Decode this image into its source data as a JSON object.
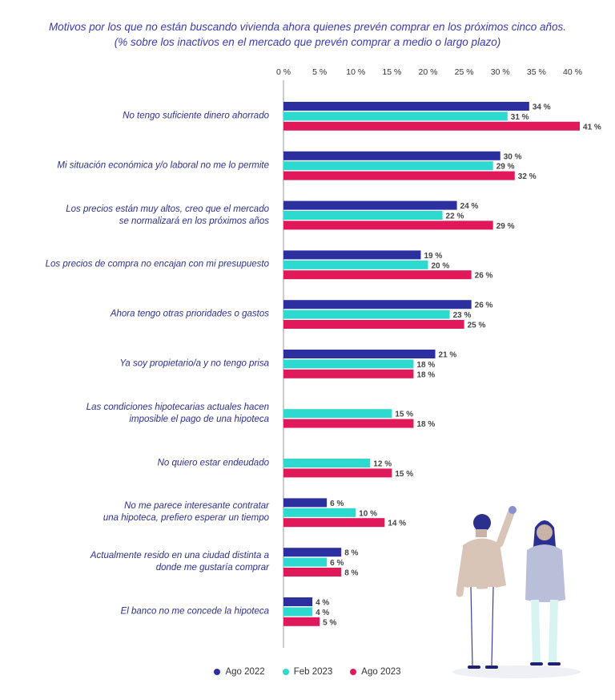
{
  "header": {
    "title_line1": "Motivos por los que no están buscando vivienda ahora quienes prevén comprar en los próximos cinco años.",
    "title_line2": "(% sobre los inactivos en el mercado que prevén comprar a medio o largo plazo)"
  },
  "chart_data": {
    "type": "bar",
    "orientation": "horizontal",
    "categories": [
      [
        "No tengo suficiente dinero ahorrado"
      ],
      [
        "Mi situación económica y/o laboral no me lo permite"
      ],
      [
        "Los precios están muy altos, creo que el mercado",
        "se normalizará en los próximos años"
      ],
      [
        "Los precios de compra no encajan con mi presupuesto"
      ],
      [
        "Ahora tengo otras prioridades o gastos"
      ],
      [
        "Ya soy propietario/a y no tengo prisa"
      ],
      [
        "Las condiciones hipotecarias actuales hacen",
        "imposible el pago de una hipoteca"
      ],
      [
        "No quiero estar endeudado"
      ],
      [
        "No me parece interesante contratar",
        "una hipoteca, prefiero esperar un tiempo"
      ],
      [
        "Actualmente resido en una ciudad distinta a",
        "donde me gustaría comprar"
      ],
      [
        "El banco no me concede la hipoteca"
      ]
    ],
    "series": [
      {
        "name": "Ago 2022",
        "color": "#2b2fa0",
        "values": [
          34,
          30,
          24,
          19,
          26,
          21,
          null,
          null,
          6,
          8,
          4
        ]
      },
      {
        "name": "Feb 2023",
        "color": "#2ed9cf",
        "values": [
          31,
          29,
          22,
          20,
          23,
          18,
          15,
          12,
          10,
          6,
          4
        ]
      },
      {
        "name": "Ago 2023",
        "color": "#e0195a",
        "values": [
          41,
          32,
          29,
          26,
          25,
          18,
          18,
          15,
          14,
          8,
          5
        ]
      }
    ],
    "xticks": [
      "0 %",
      "5 %",
      "10 %",
      "15 %",
      "20 %",
      "25 %",
      "30 %",
      "35 %",
      "40 %"
    ],
    "xlim": [
      0,
      40
    ],
    "value_suffix": " %",
    "legend_position": "bottom"
  }
}
